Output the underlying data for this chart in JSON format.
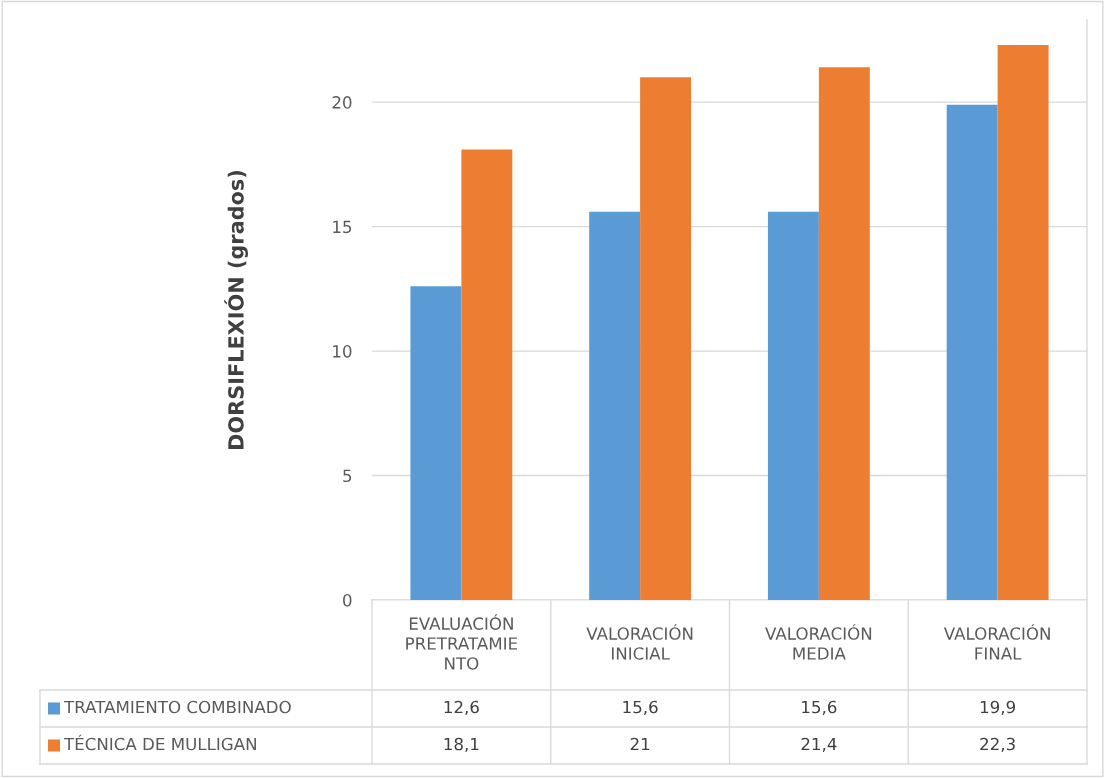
{
  "chart_data": {
    "type": "bar",
    "ylabel": "DORSIFLEXIÓN (grados)",
    "categories": [
      "EVALUACIÓN\nPRETRATAMIE\nNTO",
      "VALORACIÓN\nINICIAL",
      "VALORACIÓN\nMEDIA",
      "VALORACIÓN\nFINAL"
    ],
    "series": [
      {
        "name": "TRATAMIENTO COMBINADO",
        "color": "#5b9bd5",
        "values": [
          12.6,
          15.6,
          15.6,
          19.9
        ],
        "value_labels": [
          "12,6",
          "15,6",
          "15,6",
          "19,9"
        ]
      },
      {
        "name": "TÉCNICA DE MULLIGAN",
        "color": "#ed7d31",
        "values": [
          18.1,
          21,
          21.4,
          22.3
        ],
        "value_labels": [
          "18,1",
          "21",
          "21,4",
          "22,3"
        ]
      }
    ],
    "ylim": [
      0,
      23.3
    ],
    "yticks": [
      0,
      5,
      10,
      15,
      20
    ],
    "grid": "y",
    "legend": "bottom"
  }
}
